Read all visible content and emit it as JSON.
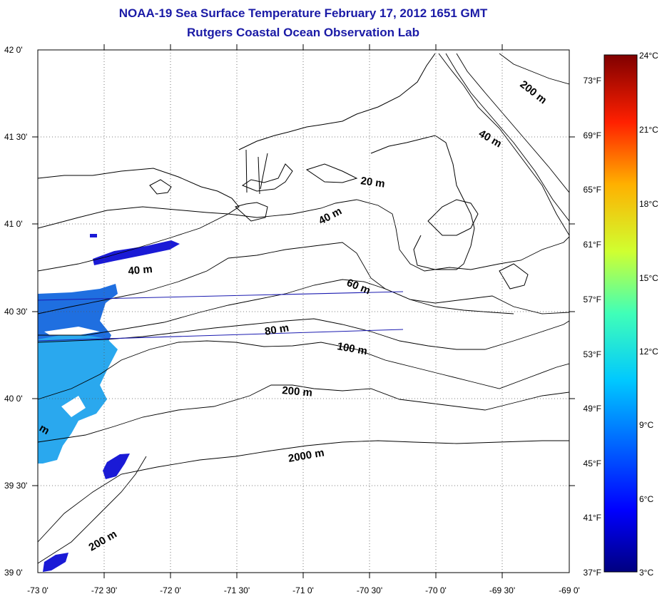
{
  "title": "NOAA-19 Sea Surface Temperature February 17, 2012 1651 GMT",
  "subtitle": "Rutgers Coastal Ocean Observation Lab",
  "lon_ticks": [
    "-73 0'",
    "-72 30'",
    "-72 0'",
    "-71 30'",
    "-71 0'",
    "-70 30'",
    "-70 0'",
    "-69 30'",
    "-69 0'"
  ],
  "lat_ticks": [
    "42 0'",
    "41 30'",
    "41 0'",
    "40 30'",
    "40 0'",
    "39 30'",
    "39 0'"
  ],
  "contour_labels": {
    "c1": "200 m",
    "c2": "40 m",
    "c3": "20 m",
    "c4": "40 m",
    "c5": "40 m",
    "c6": "60 m",
    "c7": "80 m",
    "c8": "100 m",
    "c9": "200 m",
    "c10": "2000 m",
    "c11": "200 m",
    "c12": "m"
  },
  "colorbar": {
    "celsius": [
      "24°C",
      "21°C",
      "18°C",
      "15°C",
      "12°C",
      "9°C",
      "6°C",
      "3°C"
    ],
    "fahrenheit": [
      "73°F",
      "69°F",
      "65°F",
      "61°F",
      "57°F",
      "53°F",
      "49°F",
      "45°F",
      "41°F",
      "37°F"
    ]
  },
  "colors": {
    "title": "#1a1aa6",
    "sst_deep_blue": "#1a1ad6",
    "sst_mid_blue": "#1f6fe0",
    "sst_light_blue": "#2aa8ee"
  }
}
